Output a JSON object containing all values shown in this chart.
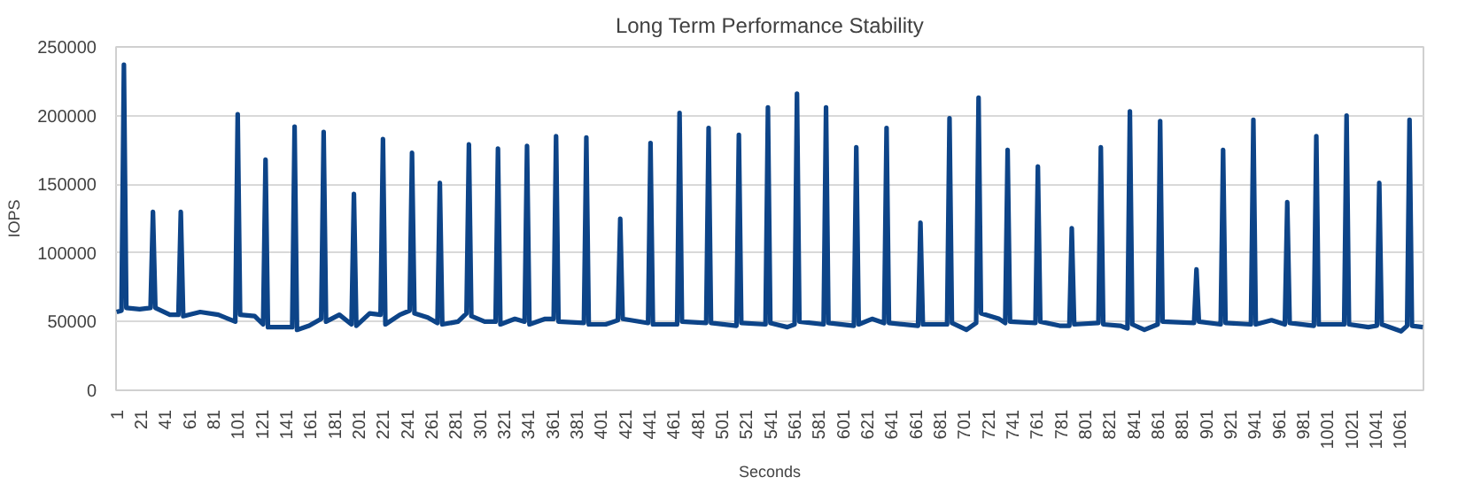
{
  "chart_data": {
    "type": "line",
    "title": "Long Term Performance Stability",
    "xlabel": "Seconds",
    "ylabel": "IOPS",
    "xlim": [
      0.5,
      1080.5
    ],
    "xticks": [
      1,
      21,
      41,
      61,
      81,
      101,
      121,
      141,
      161,
      181,
      201,
      221,
      241,
      261,
      281,
      301,
      321,
      341,
      361,
      381,
      401,
      421,
      441,
      461,
      481,
      501,
      521,
      541,
      561,
      581,
      601,
      621,
      641,
      661,
      681,
      701,
      721,
      741,
      761,
      781,
      801,
      821,
      841,
      861,
      881,
      901,
      921,
      941,
      961,
      981,
      1001,
      1021,
      1041,
      1061
    ],
    "ylim": [
      0,
      250000
    ],
    "yticks": [
      0,
      50000,
      100000,
      150000,
      200000,
      250000
    ],
    "grid": "y",
    "marker": "none",
    "line_style": "solid",
    "series": [
      {
        "color": "#0d4488",
        "x": [
          1,
          5,
          7,
          9,
          20,
          29,
          31,
          33,
          45,
          52,
          54,
          56,
          70,
          85,
          99,
          101,
          103,
          115,
          122,
          124,
          126,
          140,
          146,
          148,
          150,
          160,
          170,
          172,
          174,
          185,
          195,
          197,
          199,
          210,
          219,
          221,
          223,
          235,
          243,
          245,
          247,
          258,
          266,
          268,
          270,
          283,
          290,
          292,
          294,
          305,
          314,
          316,
          318,
          330,
          338,
          340,
          342,
          355,
          362,
          364,
          366,
          387,
          389,
          391,
          405,
          415,
          417,
          419,
          440,
          442,
          444,
          464,
          466,
          468,
          488,
          490,
          492,
          513,
          515,
          517,
          537,
          539,
          541,
          555,
          561,
          563,
          565,
          585,
          587,
          589,
          610,
          612,
          614,
          625,
          635,
          637,
          639,
          663,
          665,
          667,
          687,
          689,
          691,
          703,
          711,
          713,
          715,
          730,
          735,
          737,
          739,
          760,
          762,
          764,
          780,
          788,
          790,
          792,
          812,
          814,
          816,
          830,
          836,
          838,
          840,
          850,
          861,
          863,
          865,
          891,
          893,
          895,
          913,
          915,
          917,
          938,
          940,
          942,
          955,
          966,
          968,
          970,
          990,
          992,
          994,
          1015,
          1017,
          1019,
          1035,
          1042,
          1044,
          1046,
          1062,
          1067,
          1069,
          1071,
          1080
        ],
        "values": [
          57000,
          58000,
          237000,
          60000,
          59000,
          60000,
          130000,
          60000,
          55000,
          55000,
          130000,
          54000,
          57000,
          55000,
          50000,
          201000,
          55000,
          54000,
          48000,
          168000,
          46000,
          46000,
          46000,
          192000,
          44000,
          47000,
          52000,
          188000,
          50000,
          55000,
          48000,
          143000,
          47000,
          56000,
          55000,
          183000,
          48000,
          55000,
          58000,
          173000,
          56000,
          53000,
          49000,
          151000,
          48000,
          50000,
          56000,
          179000,
          54000,
          50000,
          50000,
          176000,
          48000,
          52000,
          50000,
          178000,
          48000,
          52000,
          52000,
          185000,
          50000,
          49000,
          184000,
          48000,
          48000,
          51000,
          125000,
          52000,
          49000,
          180000,
          48000,
          48000,
          202000,
          50000,
          49000,
          191000,
          49000,
          47000,
          186000,
          49000,
          48000,
          206000,
          49000,
          46000,
          48000,
          216000,
          50000,
          48000,
          206000,
          49000,
          47000,
          177000,
          48000,
          52000,
          49000,
          191000,
          49000,
          47000,
          122000,
          48000,
          48000,
          198000,
          49000,
          44000,
          49000,
          213000,
          56000,
          52000,
          49000,
          175000,
          50000,
          49000,
          163000,
          50000,
          47000,
          47000,
          118000,
          48000,
          49000,
          177000,
          48000,
          47000,
          45000,
          203000,
          48000,
          44000,
          48000,
          196000,
          50000,
          49000,
          88000,
          50000,
          48000,
          175000,
          49000,
          48000,
          197000,
          48000,
          51000,
          48000,
          137000,
          49000,
          47000,
          185000,
          48000,
          48000,
          200000,
          48000,
          46000,
          47000,
          151000,
          48000,
          43000,
          47000,
          197000,
          47000,
          46000
        ]
      }
    ]
  }
}
